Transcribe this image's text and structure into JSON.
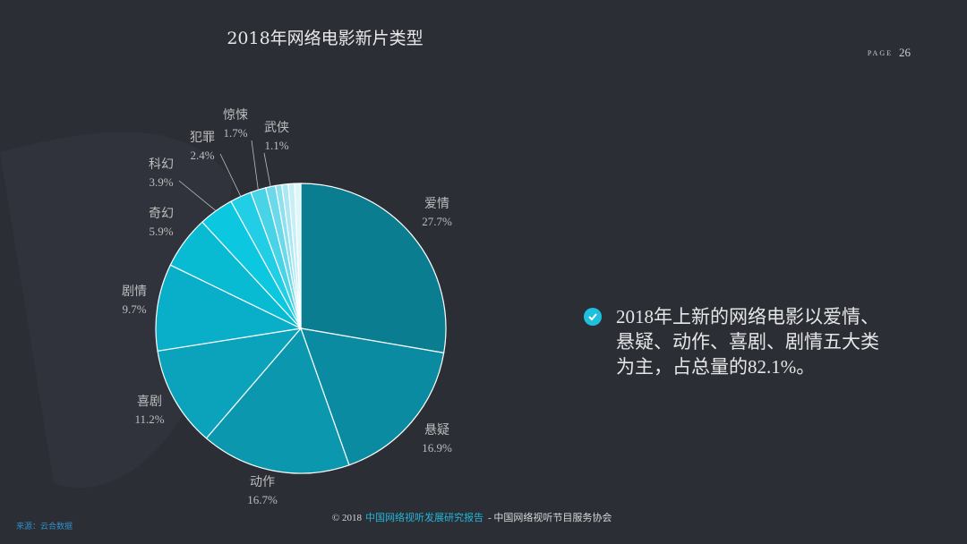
{
  "chart_data": {
    "type": "pie",
    "title": "2018年网络电影新片类型",
    "categories": [
      "爱情",
      "悬疑",
      "动作",
      "喜剧",
      "剧情",
      "奇幻",
      "科幻",
      "犯罪",
      "惊悚",
      "武侠",
      null,
      null,
      null,
      null
    ],
    "values": [
      27.7,
      16.9,
      16.7,
      11.2,
      9.7,
      5.9,
      3.9,
      2.4,
      1.7,
      1.1,
      0.7,
      0.7,
      0.7,
      0.7
    ],
    "value_labels": [
      "27.7%",
      "16.9%",
      "16.7%",
      "11.2%",
      "9.7%",
      "5.9%",
      "3.9%",
      "2.4%",
      "1.7%",
      "1.1%",
      null,
      null,
      null,
      null
    ],
    "colors": [
      "#0a7d91",
      "#0a8ba1",
      "#0b98af",
      "#0aa3bb",
      "#09afc8",
      "#08bbd3",
      "#0bc7df",
      "#22cde6",
      "#48d3e7",
      "#6bd9ea",
      "#8de0ee",
      "#aae7f2",
      "#c6eff6",
      "#e0f7fa"
    ]
  },
  "page": {
    "label": "PAGE",
    "number": "26"
  },
  "callout": {
    "lines": [
      "2018年上新的网络电影以爱情、",
      "悬疑、动作、喜剧、剧情五大类",
      "为主，占总量的82.1%。"
    ]
  },
  "footer": {
    "prefix": "© 2018",
    "report": "中国网络视听发展研究报告",
    "suffix": "- 中国网络视听节目服务协会"
  },
  "source": "来源：云合数据"
}
